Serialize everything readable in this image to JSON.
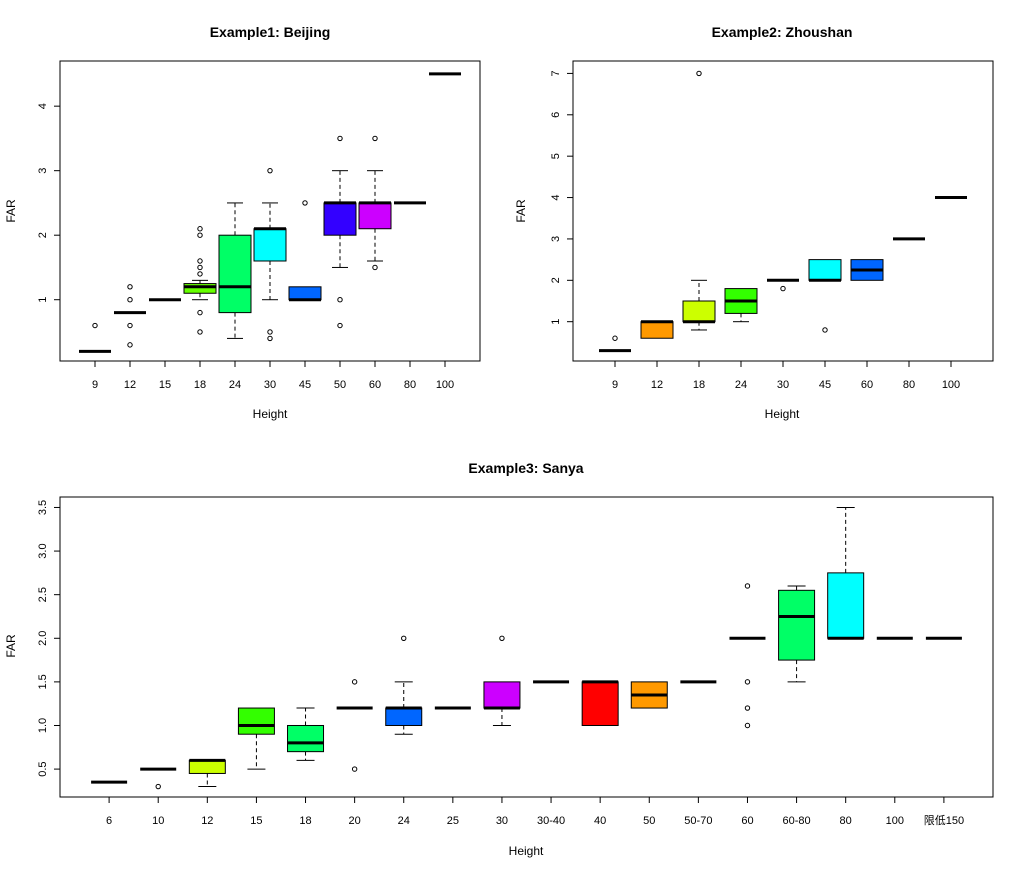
{
  "chart_data": [
    {
      "type": "box",
      "title": "Example1: Beijing",
      "xlabel": "Height",
      "ylabel": "FAR",
      "ylim": [
        0.05,
        4.7
      ],
      "yticks": [
        1,
        2,
        3,
        4
      ],
      "categories": [
        "9",
        "12",
        "15",
        "18",
        "24",
        "30",
        "45",
        "50",
        "60",
        "80",
        "100"
      ],
      "boxes": [
        {
          "q1": 0.2,
          "median": 0.2,
          "q3": 0.2,
          "wlo": 0.2,
          "whi": 0.2,
          "outliers": [
            0.6
          ],
          "color": "#FF0000"
        },
        {
          "q1": 0.8,
          "median": 0.8,
          "q3": 0.8,
          "wlo": 0.8,
          "whi": 0.8,
          "outliers": [
            1.2,
            1.0,
            0.6,
            0.3
          ],
          "color": "#FF0000"
        },
        {
          "q1": 1.0,
          "median": 1.0,
          "q3": 1.0,
          "wlo": 1.0,
          "whi": 1.0,
          "outliers": [],
          "color": "#FFAA00"
        },
        {
          "q1": 1.1,
          "median": 1.2,
          "q3": 1.25,
          "wlo": 1.0,
          "whi": 1.3,
          "outliers": [
            2.1,
            2.0,
            1.6,
            1.5,
            1.4,
            0.8,
            0.5
          ],
          "color": "#66FF00"
        },
        {
          "q1": 0.8,
          "median": 1.2,
          "q3": 2.0,
          "wlo": 0.4,
          "whi": 2.5,
          "outliers": [],
          "color": "#00FF66"
        },
        {
          "q1": 1.6,
          "median": 2.1,
          "q3": 2.1,
          "wlo": 1.0,
          "whi": 2.5,
          "outliers": [
            3.0,
            0.5,
            0.4
          ],
          "color": "#00FFFF"
        },
        {
          "q1": 1.0,
          "median": 1.0,
          "q3": 1.2,
          "wlo": 1.0,
          "whi": 1.2,
          "outliers": [
            2.5
          ],
          "color": "#0066FF"
        },
        {
          "q1": 2.0,
          "median": 2.5,
          "q3": 2.5,
          "wlo": 1.5,
          "whi": 3.0,
          "outliers": [
            3.5,
            1.0,
            0.6
          ],
          "color": "#3300FF"
        },
        {
          "q1": 2.1,
          "median": 2.5,
          "q3": 2.5,
          "wlo": 1.6,
          "whi": 3.0,
          "outliers": [
            3.5,
            1.5
          ],
          "color": "#CC00FF"
        },
        {
          "q1": 2.5,
          "median": 2.5,
          "q3": 2.5,
          "wlo": 2.5,
          "whi": 2.5,
          "outliers": [],
          "color": "#FF00AA"
        },
        {
          "q1": 4.5,
          "median": 4.5,
          "q3": 4.5,
          "wlo": 4.5,
          "whi": 4.5,
          "outliers": [],
          "color": "#FF0000"
        }
      ]
    },
    {
      "type": "box",
      "title": "Example2: Zhoushan",
      "xlabel": "Height",
      "ylabel": "FAR",
      "ylim": [
        0.05,
        7.3
      ],
      "yticks": [
        1,
        2,
        3,
        4,
        5,
        6,
        7
      ],
      "categories": [
        "9",
        "12",
        "18",
        "24",
        "30",
        "45",
        "60",
        "80",
        "100"
      ],
      "boxes": [
        {
          "q1": 0.3,
          "median": 0.3,
          "q3": 0.3,
          "wlo": 0.3,
          "whi": 0.3,
          "outliers": [
            0.6
          ],
          "color": "#FF0000"
        },
        {
          "q1": 0.6,
          "median": 1.0,
          "q3": 1.0,
          "wlo": 0.6,
          "whi": 1.0,
          "outliers": [],
          "color": "#FF9900"
        },
        {
          "q1": 1.0,
          "median": 1.0,
          "q3": 1.5,
          "wlo": 0.8,
          "whi": 2.0,
          "outliers": [
            7.0
          ],
          "color": "#CCFF00"
        },
        {
          "q1": 1.2,
          "median": 1.5,
          "q3": 1.8,
          "wlo": 1.0,
          "whi": 1.8,
          "outliers": [],
          "color": "#33FF00"
        },
        {
          "q1": 2.0,
          "median": 2.0,
          "q3": 2.0,
          "wlo": 2.0,
          "whi": 2.0,
          "outliers": [
            1.8
          ],
          "color": "#00FF66"
        },
        {
          "q1": 2.0,
          "median": 2.0,
          "q3": 2.5,
          "wlo": 2.0,
          "whi": 2.5,
          "outliers": [
            0.8
          ],
          "color": "#00FFFF"
        },
        {
          "q1": 2.0,
          "median": 2.25,
          "q3": 2.5,
          "wlo": 2.0,
          "whi": 2.5,
          "outliers": [],
          "color": "#0066FF"
        },
        {
          "q1": 3.0,
          "median": 3.0,
          "q3": 3.0,
          "wlo": 3.0,
          "whi": 3.0,
          "outliers": [],
          "color": "#3300FF"
        },
        {
          "q1": 4.0,
          "median": 4.0,
          "q3": 4.0,
          "wlo": 4.0,
          "whi": 4.0,
          "outliers": [],
          "color": "#CC00FF"
        }
      ]
    },
    {
      "type": "box",
      "title": "Example3: Sanya",
      "xlabel": "Height",
      "ylabel": "FAR",
      "ylim": [
        0.18,
        3.62
      ],
      "yticks": [
        0.5,
        1.0,
        1.5,
        2.0,
        2.5,
        3.0,
        3.5
      ],
      "ytick_labels": [
        "0.5",
        "1.0",
        "1.5",
        "2.0",
        "2.5",
        "3.0",
        "3.5"
      ],
      "categories": [
        "6",
        "10",
        "12",
        "15",
        "18",
        "20",
        "24",
        "25",
        "30",
        "30-40",
        "40",
        "50",
        "50-70",
        "60",
        "60-80",
        "80",
        "100",
        "限低150"
      ],
      "boxes": [
        {
          "q1": 0.35,
          "median": 0.35,
          "q3": 0.35,
          "wlo": 0.35,
          "whi": 0.35,
          "outliers": [],
          "color": "#FF0000"
        },
        {
          "q1": 0.5,
          "median": 0.5,
          "q3": 0.5,
          "wlo": 0.5,
          "whi": 0.5,
          "outliers": [
            0.3
          ],
          "color": "#FF6600"
        },
        {
          "q1": 0.45,
          "median": 0.6,
          "q3": 0.6,
          "wlo": 0.3,
          "whi": 0.6,
          "outliers": [],
          "color": "#CCFF00"
        },
        {
          "q1": 0.9,
          "median": 1.0,
          "q3": 1.2,
          "wlo": 0.5,
          "whi": 1.2,
          "outliers": [],
          "color": "#33FF00"
        },
        {
          "q1": 0.7,
          "median": 0.8,
          "q3": 1.0,
          "wlo": 0.6,
          "whi": 1.2,
          "outliers": [],
          "color": "#00FF66"
        },
        {
          "q1": 1.2,
          "median": 1.2,
          "q3": 1.2,
          "wlo": 1.2,
          "whi": 1.2,
          "outliers": [
            1.5,
            0.5
          ],
          "color": "#00FFCC"
        },
        {
          "q1": 1.0,
          "median": 1.2,
          "q3": 1.2,
          "wlo": 0.9,
          "whi": 1.5,
          "outliers": [
            2.0
          ],
          "color": "#0066FF"
        },
        {
          "q1": 1.2,
          "median": 1.2,
          "q3": 1.2,
          "wlo": 1.2,
          "whi": 1.2,
          "outliers": [],
          "color": "#0000FF"
        },
        {
          "q1": 1.2,
          "median": 1.2,
          "q3": 1.5,
          "wlo": 1.0,
          "whi": 1.5,
          "outliers": [
            2.0
          ],
          "color": "#CC00FF"
        },
        {
          "q1": 1.5,
          "median": 1.5,
          "q3": 1.5,
          "wlo": 1.5,
          "whi": 1.5,
          "outliers": [],
          "color": "#FF00CC"
        },
        {
          "q1": 1.0,
          "median": 1.5,
          "q3": 1.5,
          "wlo": 1.0,
          "whi": 1.5,
          "outliers": [],
          "color": "#FF0000"
        },
        {
          "q1": 1.2,
          "median": 1.35,
          "q3": 1.5,
          "wlo": 1.2,
          "whi": 1.5,
          "outliers": [],
          "color": "#FF9900"
        },
        {
          "q1": 1.5,
          "median": 1.5,
          "q3": 1.5,
          "wlo": 1.5,
          "whi": 1.5,
          "outliers": [],
          "color": "#CCFF00"
        },
        {
          "q1": 2.0,
          "median": 2.0,
          "q3": 2.0,
          "wlo": 2.0,
          "whi": 2.0,
          "outliers": [
            2.6,
            1.5,
            1.2,
            1.0
          ],
          "color": "#33FF00"
        },
        {
          "q1": 1.75,
          "median": 2.25,
          "q3": 2.55,
          "wlo": 1.5,
          "whi": 2.6,
          "outliers": [],
          "color": "#00FF66"
        },
        {
          "q1": 2.0,
          "median": 2.0,
          "q3": 2.75,
          "wlo": 2.0,
          "whi": 3.5,
          "outliers": [],
          "color": "#00FFFF"
        },
        {
          "q1": 2.0,
          "median": 2.0,
          "q3": 2.0,
          "wlo": 2.0,
          "whi": 2.0,
          "outliers": [],
          "color": "#0066FF"
        },
        {
          "q1": 2.0,
          "median": 2.0,
          "q3": 2.0,
          "wlo": 2.0,
          "whi": 2.0,
          "outliers": [],
          "color": "#0000FF"
        }
      ]
    }
  ]
}
